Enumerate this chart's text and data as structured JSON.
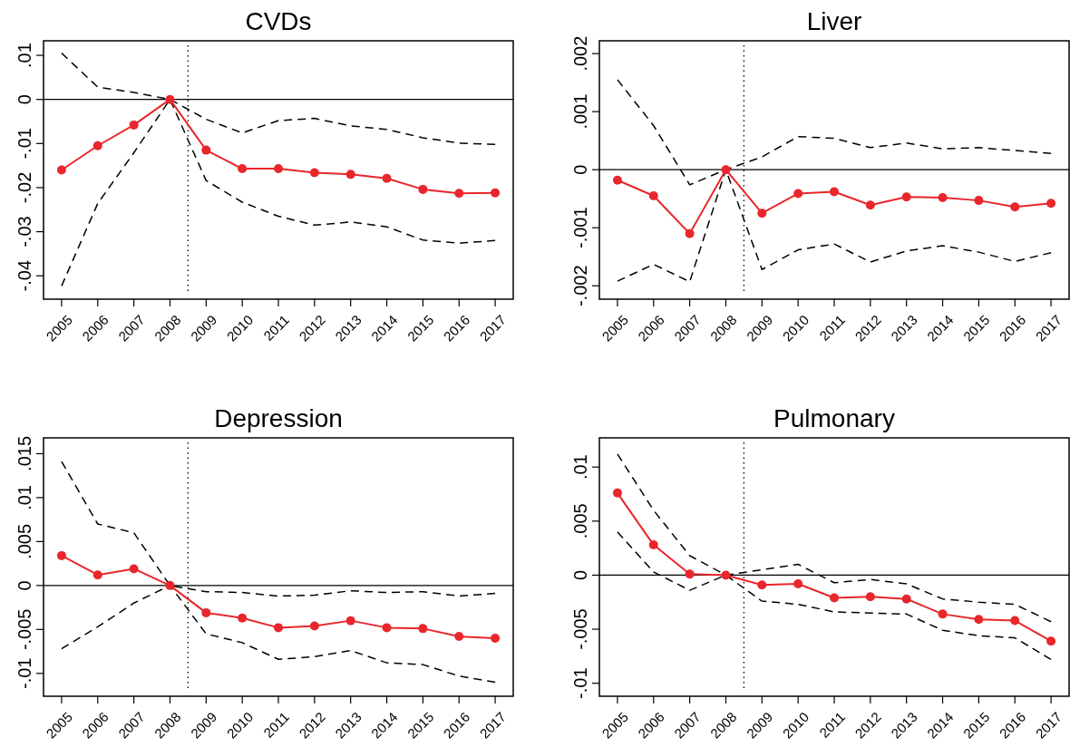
{
  "chart_data": [
    {
      "type": "line",
      "title": "CVDs",
      "x": [
        2005,
        2006,
        2007,
        2008,
        2009,
        2010,
        2011,
        2012,
        2013,
        2014,
        2015,
        2016,
        2017
      ],
      "xlim": [
        2004.5,
        2017.5
      ],
      "xticks": [
        2005,
        2006,
        2007,
        2008,
        2009,
        2010,
        2011,
        2012,
        2013,
        2014,
        2015,
        2016,
        2017
      ],
      "ylim": [
        -0.0453,
        0.0133
      ],
      "yticks": [
        {
          "value": -0.04,
          "label": "-.04"
        },
        {
          "value": -0.03,
          "label": "-.03"
        },
        {
          "value": -0.02,
          "label": "-.02"
        },
        {
          "value": -0.01,
          "label": "-.01"
        },
        {
          "value": 0,
          "label": "0"
        },
        {
          "value": 0.01,
          "label": ".01"
        }
      ],
      "ref_lines": [
        {
          "axis": "y",
          "value": 0,
          "color": "#000000",
          "line_style": "solid"
        },
        {
          "axis": "x",
          "value": 2008.5,
          "color": "#000000",
          "line_style": "dotted"
        }
      ],
      "series": [
        {
          "color": "#000000",
          "line_style": "dashed",
          "marker": "none",
          "values": [
            0.0105,
            0.0028,
            0.0016,
            0,
            -0.0045,
            -0.0076,
            -0.0048,
            -0.0043,
            -0.006,
            -0.0068,
            -0.0087,
            -0.0099,
            -0.0102
          ]
        },
        {
          "color": "#000000",
          "line_style": "dashed",
          "marker": "none",
          "values": [
            -0.0423,
            -0.0236,
            -0.0121,
            0,
            -0.0184,
            -0.0233,
            -0.0265,
            -0.0285,
            -0.0278,
            -0.0289,
            -0.0319,
            -0.0326,
            -0.032
          ]
        },
        {
          "color": "#e8262b",
          "line_style": "solid",
          "marker": "circle",
          "values": [
            -0.016,
            -0.0105,
            -0.0058,
            0,
            -0.0115,
            -0.0157,
            -0.0157,
            -0.0166,
            -0.017,
            -0.0179,
            -0.0204,
            -0.0213,
            -0.0212
          ]
        }
      ]
    },
    {
      "type": "line",
      "title": "Liver",
      "x": [
        2005,
        2006,
        2007,
        2008,
        2009,
        2010,
        2011,
        2012,
        2013,
        2014,
        2015,
        2016,
        2017
      ],
      "xlim": [
        2004.5,
        2017.5
      ],
      "xticks": [
        2005,
        2006,
        2007,
        2008,
        2009,
        2010,
        2011,
        2012,
        2013,
        2014,
        2015,
        2016,
        2017
      ],
      "ylim": [
        -0.00223,
        0.00222
      ],
      "yticks": [
        {
          "value": -0.002,
          "label": "-.002"
        },
        {
          "value": -0.001,
          "label": "-.001"
        },
        {
          "value": 0,
          "label": "0"
        },
        {
          "value": 0.001,
          "label": ".001"
        },
        {
          "value": 0.002,
          "label": ".002"
        }
      ],
      "ref_lines": [
        {
          "axis": "y",
          "value": 0,
          "color": "#000000",
          "line_style": "solid"
        },
        {
          "axis": "x",
          "value": 2008.5,
          "color": "#000000",
          "line_style": "dotted"
        }
      ],
      "series": [
        {
          "color": "#000000",
          "line_style": "dashed",
          "marker": "none",
          "values": [
            0.00155,
            0.00076,
            -0.00026,
            0,
            0.00022,
            0.00057,
            0.00054,
            0.00038,
            0.00046,
            0.00036,
            0.00038,
            0.00033,
            0.00028
          ]
        },
        {
          "color": "#000000",
          "line_style": "dashed",
          "marker": "none",
          "values": [
            -0.00192,
            -0.00163,
            -0.00193,
            0,
            -0.00172,
            -0.00138,
            -0.00128,
            -0.00159,
            -0.0014,
            -0.00131,
            -0.00142,
            -0.00158,
            -0.00143
          ]
        },
        {
          "color": "#e8262b",
          "line_style": "solid",
          "marker": "circle",
          "values": [
            -0.00018,
            -0.00045,
            -0.0011,
            0,
            -0.00075,
            -0.00041,
            -0.00038,
            -0.00061,
            -0.00047,
            -0.00048,
            -0.00053,
            -0.00064,
            -0.00058
          ]
        }
      ]
    },
    {
      "type": "line",
      "title": "Depression",
      "x": [
        2005,
        2006,
        2007,
        2008,
        2009,
        2010,
        2011,
        2012,
        2013,
        2014,
        2015,
        2016,
        2017
      ],
      "xlim": [
        2004.5,
        2017.5
      ],
      "xticks": [
        2005,
        2006,
        2007,
        2008,
        2009,
        2010,
        2011,
        2012,
        2013,
        2014,
        2015,
        2016,
        2017
      ],
      "ylim": [
        -0.0126,
        0.0168
      ],
      "yticks": [
        {
          "value": -0.01,
          "label": "-.01"
        },
        {
          "value": -0.005,
          "label": "-.005"
        },
        {
          "value": 0,
          "label": "0"
        },
        {
          "value": 0.005,
          "label": ".005"
        },
        {
          "value": 0.01,
          "label": ".01"
        },
        {
          "value": 0.015,
          "label": ".015"
        }
      ],
      "ref_lines": [
        {
          "axis": "y",
          "value": 0,
          "color": "#000000",
          "line_style": "solid"
        },
        {
          "axis": "x",
          "value": 2008.5,
          "color": "#000000",
          "line_style": "dotted"
        }
      ],
      "series": [
        {
          "color": "#000000",
          "line_style": "dashed",
          "marker": "none",
          "values": [
            0.0141,
            0.007,
            0.006,
            0,
            -0.0007,
            -0.0008,
            -0.0012,
            -0.0011,
            -0.0006,
            -0.0008,
            -0.0007,
            -0.0012,
            -0.0009
          ]
        },
        {
          "color": "#000000",
          "line_style": "dashed",
          "marker": "none",
          "values": [
            -0.0072,
            -0.0047,
            -0.002,
            0,
            -0.0055,
            -0.0065,
            -0.0084,
            -0.0081,
            -0.0074,
            -0.0088,
            -0.009,
            -0.0103,
            -0.011
          ]
        },
        {
          "color": "#e8262b",
          "line_style": "solid",
          "marker": "circle",
          "values": [
            0.0034,
            0.0012,
            0.0019,
            0,
            -0.0031,
            -0.0037,
            -0.0048,
            -0.0046,
            -0.004,
            -0.0048,
            -0.0049,
            -0.0058,
            -0.006
          ]
        }
      ]
    },
    {
      "type": "line",
      "title": "Pulmonary",
      "x": [
        2005,
        2006,
        2007,
        2008,
        2009,
        2010,
        2011,
        2012,
        2013,
        2014,
        2015,
        2016,
        2017
      ],
      "xlim": [
        2004.5,
        2017.5
      ],
      "xticks": [
        2005,
        2006,
        2007,
        2008,
        2009,
        2010,
        2011,
        2012,
        2013,
        2014,
        2015,
        2016,
        2017
      ],
      "ylim": [
        -0.0112,
        0.0127
      ],
      "yticks": [
        {
          "value": -0.01,
          "label": "-.01"
        },
        {
          "value": -0.005,
          "label": "-.005"
        },
        {
          "value": 0,
          "label": "0"
        },
        {
          "value": 0.005,
          "label": ".005"
        },
        {
          "value": 0.01,
          "label": ".01"
        }
      ],
      "ref_lines": [
        {
          "axis": "y",
          "value": 0,
          "color": "#000000",
          "line_style": "solid"
        },
        {
          "axis": "x",
          "value": 2008.5,
          "color": "#000000",
          "line_style": "dotted"
        }
      ],
      "series": [
        {
          "color": "#000000",
          "line_style": "dashed",
          "marker": "none",
          "values": [
            0.0112,
            0.006,
            0.0018,
            0,
            0.0005,
            0.001,
            -0.0007,
            -0.0004,
            -0.0008,
            -0.0022,
            -0.0025,
            -0.0027,
            -0.0043
          ]
        },
        {
          "color": "#000000",
          "line_style": "dashed",
          "marker": "none",
          "values": [
            0.004,
            0.0003,
            -0.0014,
            0,
            -0.0024,
            -0.0027,
            -0.0034,
            -0.0035,
            -0.0036,
            -0.0051,
            -0.0056,
            -0.0058,
            -0.0078
          ]
        },
        {
          "color": "#e8262b",
          "line_style": "solid",
          "marker": "circle",
          "values": [
            0.0076,
            0.0028,
            0.0001,
            0,
            -0.0009,
            -0.0008,
            -0.0021,
            -0.002,
            -0.0022,
            -0.0036,
            -0.0041,
            -0.0042,
            -0.0061
          ]
        }
      ]
    }
  ]
}
